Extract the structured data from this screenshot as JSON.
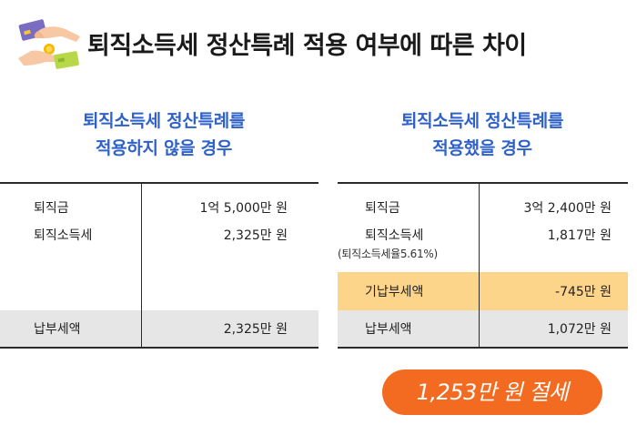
{
  "header": {
    "title": "퇴직소득세 정산특례 적용 여부에 따른 차이",
    "icon": "hands-money-icon"
  },
  "left": {
    "title_line1": "퇴직소득세 정산특례를",
    "title_line2": "적용하지 않을 경우",
    "rows": [
      {
        "label": "퇴직금",
        "value": "1억 5,000만 원"
      },
      {
        "label": "퇴직소득세",
        "value": "2,325만 원"
      }
    ],
    "total": {
      "label": "납부세액",
      "value": "2,325만 원"
    }
  },
  "right": {
    "title_line1": "퇴직소득세 정산특례를",
    "title_line2": "적용했을 경우",
    "rows": [
      {
        "label": "퇴직금",
        "value": "3억 2,400만 원"
      },
      {
        "label": "퇴직소득세",
        "sub": "(퇴직소득세율5.61%)",
        "value": "1,817만 원"
      }
    ],
    "highlight": {
      "label": "기납부세액",
      "value": "-745만 원"
    },
    "total": {
      "label": "납부세액",
      "value": "1,072만 원"
    }
  },
  "savings": {
    "label": "1,253만 원 절세"
  },
  "colors": {
    "accent_blue": "#2f62c9",
    "highlight": "#fdd58a",
    "badge": "#f26b21",
    "shade": "#e6e6e6"
  }
}
